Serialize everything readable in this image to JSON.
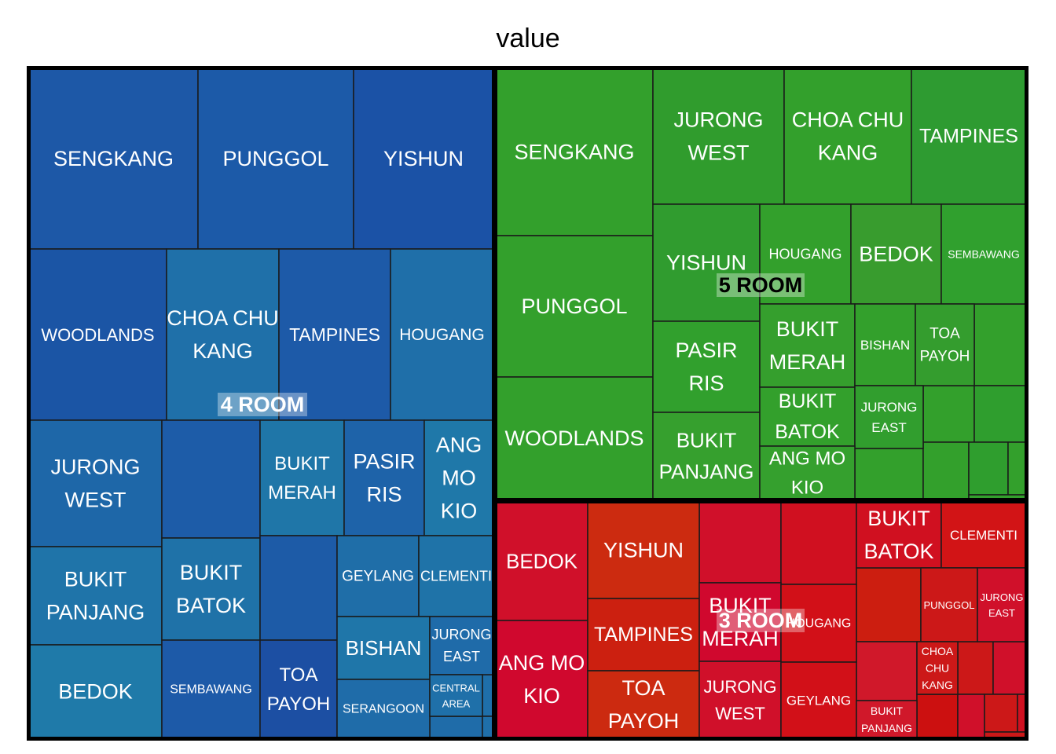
{
  "chart_data": {
    "type": "treemap",
    "title": "value",
    "groups": [
      {
        "name": "4 ROOM",
        "color": "#1f5fae",
        "tiles": [
          {
            "label": "SENGKANG",
            "color": "#1d58a7"
          },
          {
            "label": "PUNGGOL",
            "color": "#1c5aa8"
          },
          {
            "label": "YISHUN",
            "color": "#1b52a6"
          },
          {
            "label": "WOODLANDS",
            "color": "#1b55a5"
          },
          {
            "label": "CHOA CHU KANG",
            "color": "#1f70a9"
          },
          {
            "label": "TAMPINES",
            "color": "#1d5aa8"
          },
          {
            "label": "HOUGANG",
            "color": "#1f6fa9"
          },
          {
            "label": "JURONG WEST",
            "color": "#1e67a8"
          },
          {
            "label": "",
            "color": "#1d5ca8"
          },
          {
            "label": "BUKIT MERAH",
            "color": "#1f76a8"
          },
          {
            "label": "PASIR RIS",
            "color": "#1e63a9"
          },
          {
            "label": "ANG MO KIO",
            "color": "#1f78a9"
          },
          {
            "label": "BUKIT PANJANG",
            "color": "#1f74a9"
          },
          {
            "label": "BUKIT BATOK",
            "color": "#1f72a8"
          },
          {
            "label": "",
            "color": "#1d5ba7"
          },
          {
            "label": "GEYLANG",
            "color": "#1f6ea8"
          },
          {
            "label": "CLEMENTI",
            "color": "#1f73a8"
          },
          {
            "label": "BEDOK",
            "color": "#1f7aa9"
          },
          {
            "label": "SEMBAWANG",
            "color": "#1d5aa8"
          },
          {
            "label": "TOA PAYOH",
            "color": "#1c4fa3"
          },
          {
            "label": "BISHAN",
            "color": "#1f76a9"
          },
          {
            "label": "JURONG EAST",
            "color": "#1f6ba9"
          },
          {
            "label": "SERANGOON",
            "color": "#1f6ca9"
          },
          {
            "label": "CENTRAL AREA",
            "color": "#1f70a9"
          }
        ]
      },
      {
        "name": "5 ROOM",
        "color": "#2e9a2e",
        "tiles": [
          {
            "label": "SENGKANG",
            "color": "#33a02c"
          },
          {
            "label": "JURONG WEST",
            "color": "#309c2d"
          },
          {
            "label": "CHOA CHU KANG",
            "color": "#33a02c"
          },
          {
            "label": "TAMPINES",
            "color": "#2e9b31"
          },
          {
            "label": "PUNGGOL",
            "color": "#33a02c"
          },
          {
            "label": "YISHUN",
            "color": "#309c2f"
          },
          {
            "label": "HOUGANG",
            "color": "#33a02c"
          },
          {
            "label": "BEDOK",
            "color": "#389c2e"
          },
          {
            "label": "SEMBAWANG",
            "color": "#30a02e"
          },
          {
            "label": "WOODLANDS",
            "color": "#33a02c"
          },
          {
            "label": "PASIR RIS",
            "color": "#31a02d"
          },
          {
            "label": "BUKIT MERAH",
            "color": "#359f2d"
          },
          {
            "label": "BISHAN",
            "color": "#33a02c"
          },
          {
            "label": "TOA PAYOH",
            "color": "#349d2e"
          },
          {
            "label": "BUKIT PANJANG",
            "color": "#36a02e"
          },
          {
            "label": "BUKIT BATOK",
            "color": "#33a02c"
          },
          {
            "label": "JURONG EAST",
            "color": "#319e2e"
          },
          {
            "label": "ANG MO KIO",
            "color": "#35a02e"
          }
        ]
      },
      {
        "name": "3 ROOM",
        "color": "#d21a1a",
        "tiles": [
          {
            "label": "BEDOK",
            "color": "#d0102a"
          },
          {
            "label": "YISHUN",
            "color": "#cc2b10"
          },
          {
            "label": "BUKIT BATOK",
            "color": "#d01020"
          },
          {
            "label": "CLEMENTI",
            "color": "#d21416"
          },
          {
            "label": "ANG MO KIO",
            "color": "#d0082e"
          },
          {
            "label": "TAMPINES",
            "color": "#cc2010"
          },
          {
            "label": "BUKIT MERAH",
            "color": "#d0082e"
          },
          {
            "label": "HOUGANG",
            "color": "#d21018"
          },
          {
            "label": "PUNGGOL",
            "color": "#cc1818"
          },
          {
            "label": "JURONG EAST",
            "color": "#d0102a"
          },
          {
            "label": "TOA PAYOH",
            "color": "#cc2a10"
          },
          {
            "label": "JURONG WEST",
            "color": "#d0102a"
          },
          {
            "label": "GEYLANG",
            "color": "#d21018"
          },
          {
            "label": "CHOA CHU KANG",
            "color": "#cc1818"
          },
          {
            "label": "BUKIT PANJANG",
            "color": "#d0182a"
          }
        ]
      }
    ]
  }
}
